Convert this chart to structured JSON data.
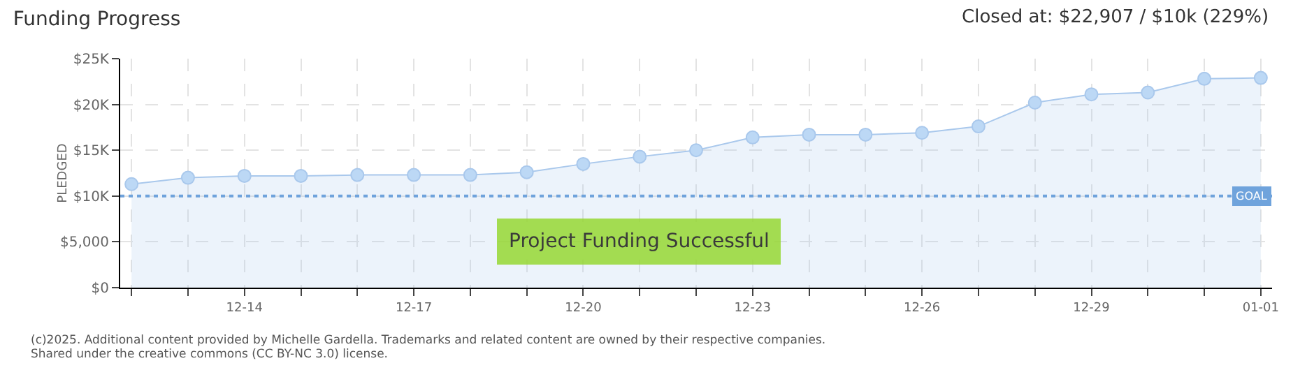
{
  "chart_data": {
    "type": "area",
    "title": "Funding Progress",
    "ylabel": "PLEDGED",
    "categories": [
      null,
      null,
      "12-14",
      null,
      null,
      "12-17",
      null,
      null,
      "12-20",
      null,
      null,
      "12-23",
      null,
      null,
      "12-26",
      null,
      null,
      "12-29",
      null,
      null,
      "01-01"
    ],
    "series": [
      {
        "color": "#a9c8ec",
        "values": [
          11300,
          12000,
          12200,
          12200,
          12300,
          12300,
          12300,
          12600,
          13500,
          14300,
          15000,
          16400,
          16700,
          16700,
          16900,
          17600,
          20200,
          21100,
          21300,
          22800,
          22900
        ]
      }
    ],
    "ylim": [
      0,
      25000
    ],
    "yticks": [
      {
        "value": 0,
        "label": "$0"
      },
      {
        "value": 5000,
        "label": "$5,000"
      },
      {
        "value": 10000,
        "label": "$10K"
      },
      {
        "value": 15000,
        "label": "$15K"
      },
      {
        "value": 20000,
        "label": "$20K"
      },
      {
        "value": 25000,
        "label": "$25K"
      }
    ],
    "ref_lines": [
      {
        "axis": "y",
        "value": 10000,
        "label": "GOAL",
        "color": "#6fa3dc",
        "line_style": "dotted"
      }
    ],
    "grid": true,
    "marker": "circle",
    "line_style": "solid",
    "annotations": [
      "Closed at: $22,907 / $10k (229%)",
      "Project Funding Successful",
      "(c)2025. Additional content provided by Michelle Gardella. Trademarks and related content are owned by their respective companies.",
      "Shared under the creative commons (CC BY-NC 3.0) license."
    ]
  }
}
